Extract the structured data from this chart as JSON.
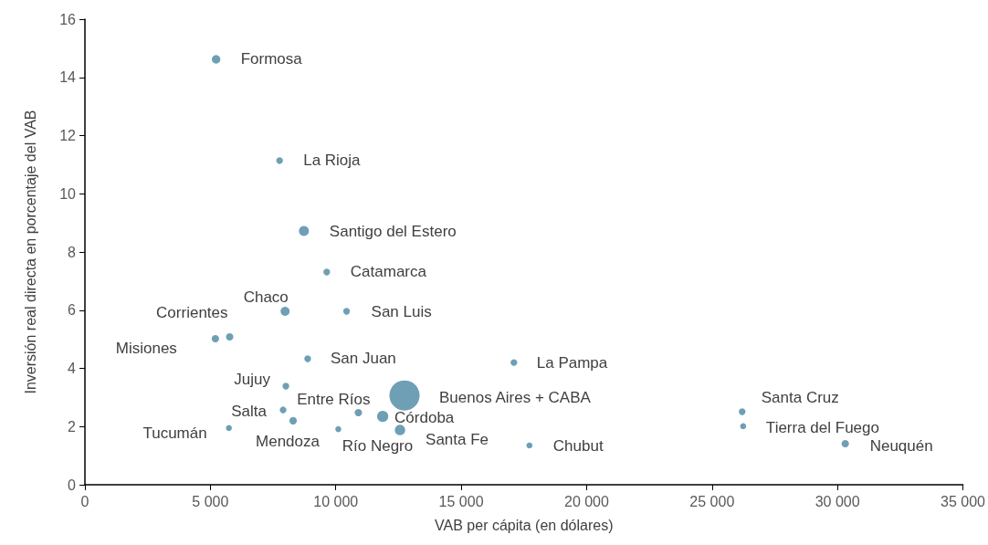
{
  "chart_data": {
    "type": "bubble",
    "xlabel": "VAB per cápita (en dólares)",
    "ylabel": "Inversión real directa en porcentaje del VAB",
    "xlim": [
      0,
      35000
    ],
    "ylim": [
      0,
      16
    ],
    "xticks": [
      0,
      {
        "value": 5000,
        "label": "5 000"
      },
      {
        "value": 10000,
        "label": "10 000"
      },
      {
        "value": 15000,
        "label": "15 000"
      },
      {
        "value": 20000,
        "label": "20 000"
      },
      {
        "value": 25000,
        "label": "25 000"
      },
      {
        "value": 30000,
        "label": "30 000"
      },
      {
        "value": 35000,
        "label": "35 000"
      }
    ],
    "yticks": [
      0,
      2,
      4,
      6,
      8,
      10,
      12,
      14,
      16
    ],
    "grid": false,
    "marker": "circle",
    "series": [
      {
        "color": "#6f9fb5",
        "x": [
          5230,
          7760,
          8730,
          9640,
          7980,
          10430,
          5770,
          5200,
          8880,
          17100,
          8010,
          12740,
          7900,
          10900,
          11870,
          8300,
          5740,
          10100,
          12560,
          17720,
          26200,
          26240,
          30310
        ],
        "values": [
          14.62,
          11.14,
          8.72,
          7.31,
          5.96,
          5.96,
          5.08,
          5.02,
          4.33,
          4.2,
          3.39,
          3.07,
          2.57,
          2.48,
          2.35,
          2.2,
          1.95,
          1.91,
          1.88,
          1.35,
          2.51,
          2.01,
          1.41
        ],
        "sizes": [
          0.08,
          0.05,
          0.11,
          0.05,
          0.09,
          0.05,
          0.06,
          0.06,
          0.05,
          0.05,
          0.05,
          1,
          0.05,
          0.06,
          0.14,
          0.06,
          0.04,
          0.04,
          0.12,
          0.04,
          0.05,
          0.04,
          0.06
        ]
      }
    ],
    "annotations": [
      {
        "text": "Formosa",
        "x": 5230,
        "y": 14.62
      },
      {
        "text": "La Rioja",
        "x": 7760,
        "y": 11.14
      },
      {
        "text": "Santigo del Estero",
        "x": 8730,
        "y": 8.72
      },
      {
        "text": "Catamarca",
        "x": 9640,
        "y": 7.31
      },
      {
        "text": "Chaco",
        "x": 7980,
        "y": 5.96
      },
      {
        "text": "San Luis",
        "x": 10430,
        "y": 5.96
      },
      {
        "text": "Corrientes",
        "x": 5770,
        "y": 5.08
      },
      {
        "text": "Misiones",
        "x": 5200,
        "y": 5.02
      },
      {
        "text": "San Juan",
        "x": 8880,
        "y": 4.33
      },
      {
        "text": "La Pampa",
        "x": 17100,
        "y": 4.2
      },
      {
        "text": "Jujuy",
        "x": 8010,
        "y": 3.39
      },
      {
        "text": "Buenos Aires + CABA",
        "x": 12740,
        "y": 3.07
      },
      {
        "text": "Salta",
        "x": 7900,
        "y": 2.57
      },
      {
        "text": "Entre Ríos",
        "x": 10900,
        "y": 2.48
      },
      {
        "text": "Córdoba",
        "x": 11870,
        "y": 2.35
      },
      {
        "text": "Mendoza",
        "x": 8300,
        "y": 2.2
      },
      {
        "text": "Tucumán",
        "x": 5740,
        "y": 1.95
      },
      {
        "text": "Río Negro",
        "x": 10100,
        "y": 1.91
      },
      {
        "text": "Santa Fe",
        "x": 12560,
        "y": 1.88
      },
      {
        "text": "Chubut",
        "x": 17720,
        "y": 1.35
      },
      {
        "text": "Santa Cruz",
        "x": 26200,
        "y": 2.51
      },
      {
        "text": "Tierra del Fuego",
        "x": 26240,
        "y": 2.01
      },
      {
        "text": "Neuquén",
        "x": 30310,
        "y": 1.41
      }
    ]
  }
}
